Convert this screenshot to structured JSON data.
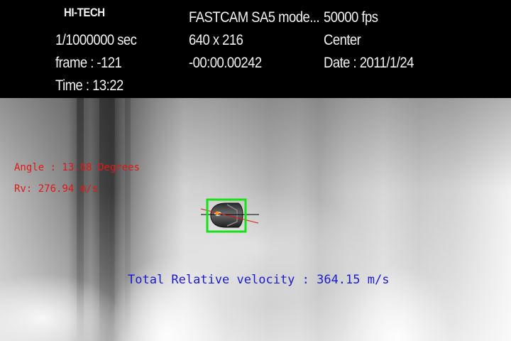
{
  "header": {
    "brand": "HI-TECH",
    "shutter": "1/1000000 sec",
    "frame": "frame : -121",
    "time": "Time : 13:22",
    "model": "FASTCAM SA5 mode...",
    "resolution": "640 x 216",
    "timecode": "-00:00.00242",
    "fps": "50000 fps",
    "trigger": "Center",
    "date": "Date : 2011/1/24"
  },
  "overlay": {
    "angle": "Angle : 13.68 Degrees",
    "rv": "Rv: 276.94 m/s",
    "total_velocity": "Total Relative velocity : 364.15 m/s"
  },
  "colors": {
    "header_text": "#f2f2f2",
    "angle_text": "#e01818",
    "velocity_text": "#1a1acc",
    "tracking_box": "#19e019"
  }
}
